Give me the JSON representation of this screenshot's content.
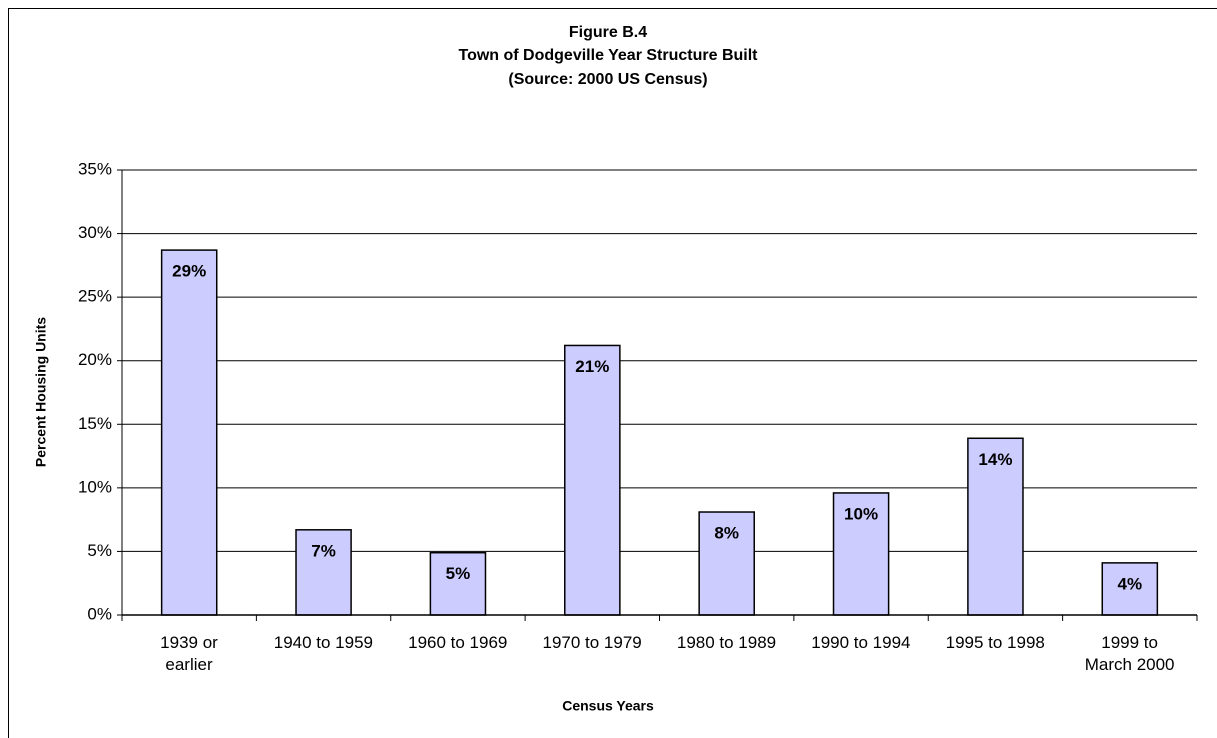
{
  "chart_data": {
    "type": "bar",
    "title": "Figure B.4",
    "subtitle": "Town of Dodgeville Year Structure Built",
    "source": "(Source:  2000 US Census)",
    "xlabel": "Census Years",
    "ylabel": "Percent Housing Units",
    "categories": [
      "1939 or\nearlier",
      "1940 to 1959",
      "1960 to 1969",
      "1970 to 1979",
      "1980 to 1989",
      "1990 to 1994",
      "1995 to 1998",
      "1999 to\nMarch 2000"
    ],
    "values": [
      28.7,
      6.7,
      4.9,
      21.2,
      8.1,
      9.6,
      13.9,
      4.1
    ],
    "value_labels": [
      "29%",
      "7%",
      "5%",
      "21%",
      "8%",
      "10%",
      "14%",
      "4%"
    ],
    "color": "#ccccff",
    "ylim": [
      0,
      35
    ],
    "yticks": [
      {
        "value": 0,
        "label": "0%"
      },
      {
        "value": 5,
        "label": "5%"
      },
      {
        "value": 10,
        "label": "10%"
      },
      {
        "value": 15,
        "label": "15%"
      },
      {
        "value": 20,
        "label": "20%"
      },
      {
        "value": 25,
        "label": "25%"
      },
      {
        "value": 30,
        "label": "30%"
      },
      {
        "value": 35,
        "label": "35%"
      }
    ],
    "grid": true
  }
}
